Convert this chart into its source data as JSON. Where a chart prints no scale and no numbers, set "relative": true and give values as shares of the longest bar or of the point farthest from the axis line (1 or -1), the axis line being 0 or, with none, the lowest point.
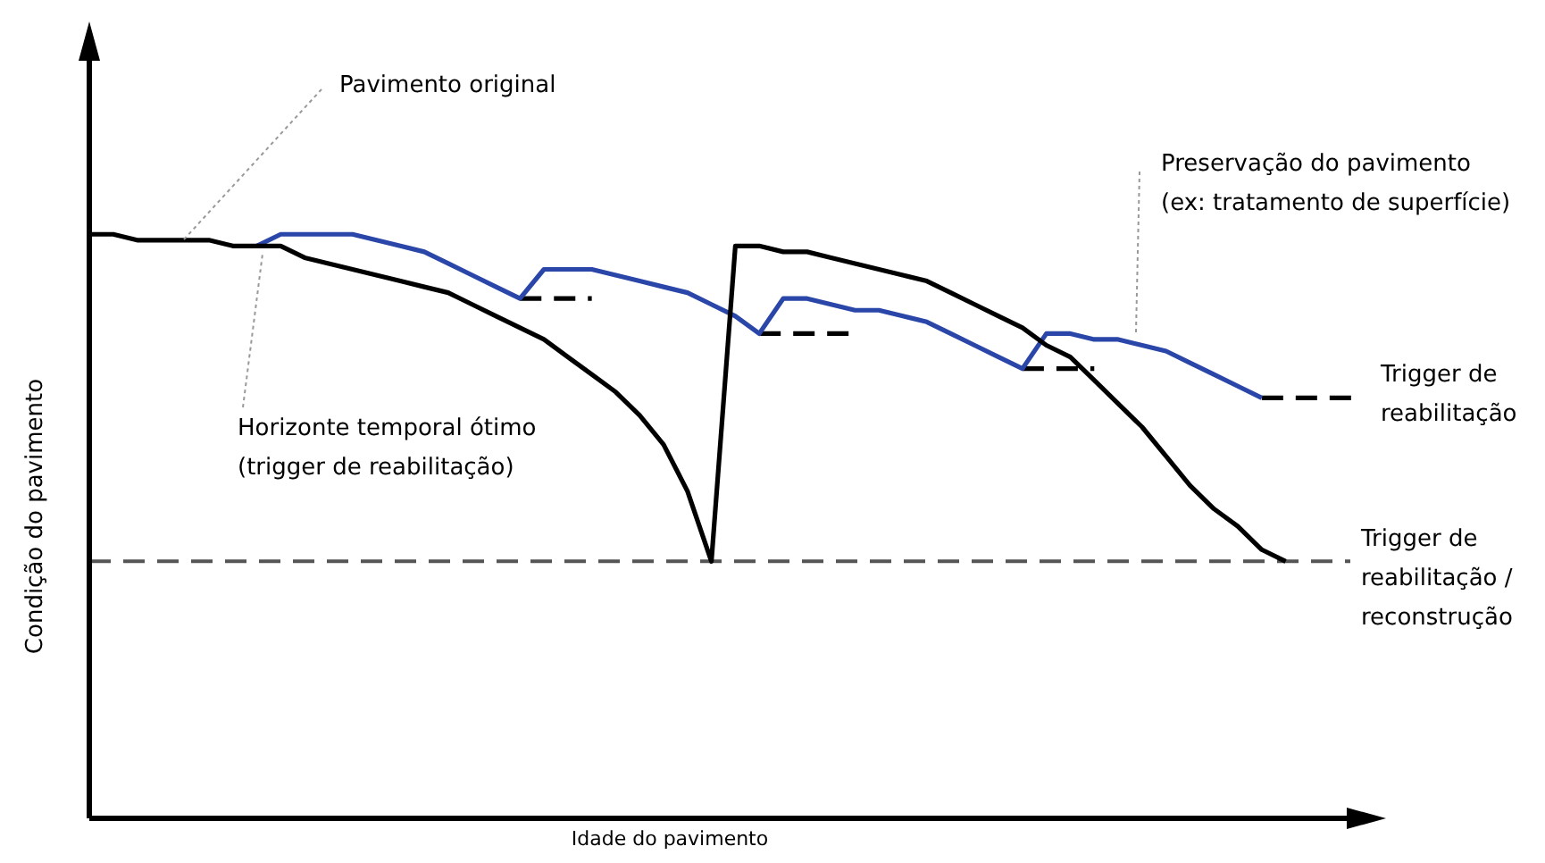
{
  "chart_data": {
    "type": "line",
    "relative": true,
    "xlabel": "Idade do pavimento",
    "ylabel": "Condição do pavimento",
    "marker": "none",
    "categories": [
      null,
      null,
      null,
      null,
      null,
      null,
      null,
      null,
      null,
      null,
      null,
      null,
      null,
      null,
      null,
      null,
      null,
      null,
      null,
      null,
      null,
      null,
      null,
      null,
      null,
      null,
      null,
      null,
      null,
      null,
      null,
      null,
      null,
      null,
      null,
      null,
      null,
      null,
      null,
      null,
      null,
      null,
      null,
      null,
      null,
      null,
      null,
      null,
      null,
      null,
      null,
      null,
      null,
      null
    ],
    "series": [
      {
        "color": "#000000",
        "line_style": "solid",
        "values": [
          1.0,
          1.0,
          0.99,
          0.99,
          0.99,
          0.99,
          0.98,
          0.98,
          0.98,
          0.96,
          0.95,
          0.94,
          0.93,
          0.92,
          0.91,
          0.9,
          0.88,
          0.86,
          0.84,
          0.82,
          0.79,
          0.76,
          0.73,
          0.69,
          0.64,
          0.56,
          0.44,
          0.98,
          0.98,
          0.97,
          0.97,
          0.96,
          0.95,
          0.94,
          0.93,
          0.92,
          0.9,
          0.88,
          0.86,
          0.84,
          0.81,
          0.79,
          0.75,
          0.71,
          0.67,
          0.62,
          0.57,
          0.53,
          0.5,
          0.46,
          0.44,
          null,
          null,
          null
        ]
      },
      {
        "color": "#2a46a8",
        "line_style": "solid",
        "values": [
          null,
          null,
          null,
          null,
          null,
          null,
          null,
          0.98,
          1.0,
          1.0,
          1.0,
          1.0,
          0.99,
          0.98,
          0.97,
          0.95,
          0.93,
          0.91,
          0.89,
          0.94,
          0.94,
          0.94,
          0.93,
          0.92,
          0.91,
          0.9,
          0.88,
          0.86,
          0.83,
          0.89,
          0.89,
          0.88,
          0.87,
          0.87,
          0.86,
          0.85,
          0.83,
          0.81,
          0.79,
          0.77,
          0.83,
          0.83,
          0.82,
          0.82,
          0.81,
          0.8,
          0.78,
          0.76,
          0.74,
          0.72,
          null,
          null,
          null,
          null
        ]
      },
      {
        "color": "#000000",
        "line_style": "dashed",
        "values": [
          null,
          null,
          null,
          null,
          null,
          null,
          null,
          null,
          null,
          null,
          null,
          null,
          null,
          null,
          null,
          null,
          null,
          null,
          0.89,
          0.89,
          0.89,
          0.89,
          null,
          null,
          null,
          null,
          null,
          null,
          0.83,
          0.83,
          0.83,
          0.83,
          0.83,
          null,
          null,
          null,
          null,
          null,
          null,
          0.77,
          0.77,
          0.77,
          0.77,
          null,
          null,
          null,
          null,
          null,
          null,
          0.72,
          0.72,
          0.72,
          0.72,
          0.72
        ]
      }
    ],
    "ref_lines": [
      {
        "axis": "y",
        "value": 0.44,
        "label": "Trigger de\nreabilitação /\nreconstrução",
        "color": "#555555",
        "line_style": "dashed"
      }
    ],
    "annotations": [
      "Pavimento original",
      "Horizonte temporal ótimo\n(trigger de reabilitação)",
      "Preservação do pavimento\n(ex: tratamento de superfície)",
      "Trigger de\nreabilitação"
    ]
  }
}
